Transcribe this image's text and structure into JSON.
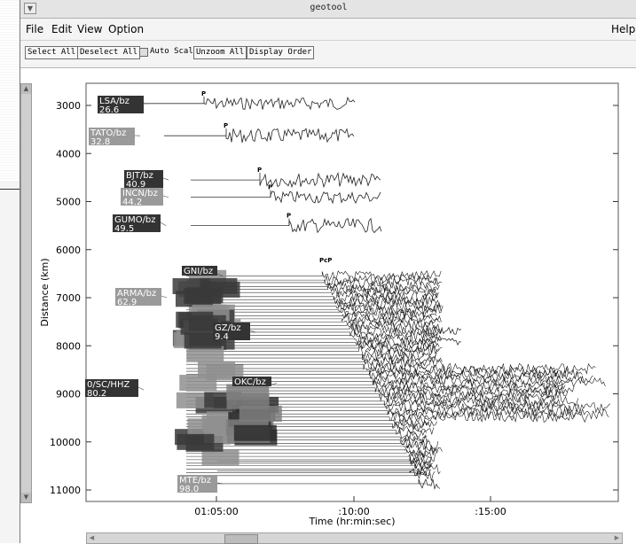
{
  "window": {
    "title": "geotool"
  },
  "menubar": {
    "items": [
      "File",
      "Edit",
      "View",
      "Option"
    ],
    "help": "Help"
  },
  "toolbar": {
    "select_all": "Select All",
    "deselect_all": "Deselect All",
    "auto_scale": {
      "label": "Auto Scale",
      "checked": false
    },
    "unzoom_all": "Unzoom All",
    "display_order": "Display Order"
  },
  "plot": {
    "ylabel": "Distance (km)",
    "xlabel": "Time (hr:min:sec)",
    "yticks": [
      "3000",
      "4000",
      "5000",
      "6000",
      "7000",
      "8000",
      "9000",
      "10000",
      "11000"
    ],
    "xticks": [
      "01:05:00",
      ":10:00",
      ":15:00"
    ],
    "phase_label_p": "P",
    "phase_label_pcp": "PcP",
    "stations": [
      {
        "name": "LSA/bz",
        "value": "26.6",
        "distance_km": 2960,
        "selected": true
      },
      {
        "name": "TATO/bz",
        "value": "32.8",
        "distance_km": 3630,
        "selected": false
      },
      {
        "name": "BJT/bz",
        "value": "40.9",
        "distance_km": 4550,
        "selected": true
      },
      {
        "name": "INCN/bz",
        "value": "44.2",
        "distance_km": 4910,
        "selected": false
      },
      {
        "name": "GUMO/bz",
        "value": "49.5",
        "distance_km": 5500,
        "selected": true
      },
      {
        "name": "GNI/bz",
        "value": "",
        "distance_km": 6550,
        "selected": true
      },
      {
        "name": "ARMA/bz",
        "value": "62.9",
        "distance_km": 7000,
        "selected": false
      },
      {
        "name": "GZ/bz",
        "value": "9.4",
        "distance_km": 7720,
        "selected": true
      },
      {
        "name": "0/SC/HHZ",
        "value": "80.2",
        "distance_km": 8920,
        "selected": true
      },
      {
        "name": "OKC/bz",
        "value": "",
        "distance_km": 8780,
        "selected": true
      },
      {
        "name": "MTE/bz",
        "value": "98.0",
        "distance_km": 10870,
        "selected": false
      }
    ]
  }
}
